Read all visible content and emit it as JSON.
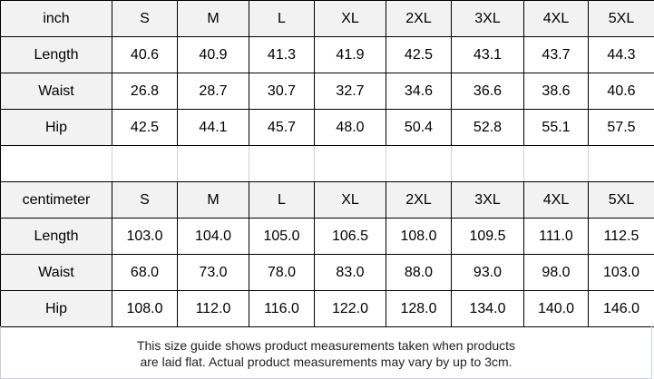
{
  "inch": {
    "unit": "inch",
    "sizes": [
      "S",
      "M",
      "L",
      "XL",
      "2XL",
      "3XL",
      "4XL",
      "5XL"
    ],
    "rows": [
      {
        "label": "Length",
        "values": [
          "40.6",
          "40.9",
          "41.3",
          "41.9",
          "42.5",
          "43.1",
          "43.7",
          "44.3"
        ]
      },
      {
        "label": "Waist",
        "values": [
          "26.8",
          "28.7",
          "30.7",
          "32.7",
          "34.6",
          "36.6",
          "38.6",
          "40.6"
        ]
      },
      {
        "label": "Hip",
        "values": [
          "42.5",
          "44.1",
          "45.7",
          "48.0",
          "50.4",
          "52.8",
          "55.1",
          "57.5"
        ]
      }
    ]
  },
  "centimeter": {
    "unit": "centimeter",
    "sizes": [
      "S",
      "M",
      "L",
      "XL",
      "2XL",
      "3XL",
      "4XL",
      "5XL"
    ],
    "rows": [
      {
        "label": "Length",
        "values": [
          "103.0",
          "104.0",
          "105.0",
          "106.5",
          "108.0",
          "109.5",
          "111.0",
          "112.5"
        ]
      },
      {
        "label": "Waist",
        "values": [
          "68.0",
          "73.0",
          "78.0",
          "83.0",
          "88.0",
          "93.0",
          "98.0",
          "103.0"
        ]
      },
      {
        "label": "Hip",
        "values": [
          "108.0",
          "112.0",
          "116.0",
          "122.0",
          "128.0",
          "134.0",
          "140.0",
          "146.0"
        ]
      }
    ]
  },
  "footer": {
    "line1": "This size guide shows product measurements taken when products",
    "line2": "are laid flat. Actual product measurements may vary by up to 3cm."
  },
  "colors": {
    "header_bg": "#f2f2f2",
    "border": "#000000",
    "blank_divider": "#c8d0e0"
  }
}
